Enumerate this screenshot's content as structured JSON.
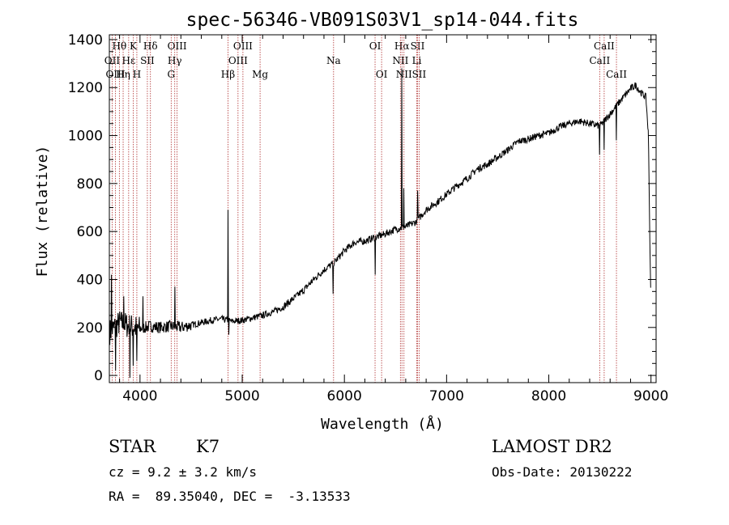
{
  "chart_data": {
    "type": "line",
    "title": "spec-56346-VB091S03V1_sp14-044.fits",
    "xlabel": "Wavelength (Å)",
    "ylabel": "Flux (relative)",
    "xlim": [
      3700,
      9050
    ],
    "ylim": [
      -30,
      1420
    ],
    "xticks": [
      "4000",
      "5000",
      "6000",
      "7000",
      "8000",
      "9000"
    ],
    "xtick_values": [
      4000,
      5000,
      6000,
      7000,
      8000,
      9000
    ],
    "yticks": [
      "0",
      "200",
      "400",
      "600",
      "800",
      "1000",
      "1200",
      "1400"
    ],
    "ytick_values": [
      0,
      200,
      400,
      600,
      800,
      1000,
      1200,
      1400
    ],
    "line_color": "#000000",
    "marker_color": "#b03030",
    "continuum": [
      [
        3700,
        180
      ],
      [
        3800,
        220
      ],
      [
        3900,
        205
      ],
      [
        4000,
        195
      ],
      [
        4100,
        205
      ],
      [
        4200,
        200
      ],
      [
        4300,
        205
      ],
      [
        4400,
        200
      ],
      [
        4500,
        210
      ],
      [
        4600,
        220
      ],
      [
        4700,
        230
      ],
      [
        4800,
        235
      ],
      [
        4900,
        225
      ],
      [
        5000,
        230
      ],
      [
        5100,
        240
      ],
      [
        5200,
        250
      ],
      [
        5300,
        265
      ],
      [
        5400,
        285
      ],
      [
        5500,
        320
      ],
      [
        5600,
        355
      ],
      [
        5700,
        400
      ],
      [
        5800,
        440
      ],
      [
        5900,
        470
      ],
      [
        6000,
        520
      ],
      [
        6100,
        555
      ],
      [
        6200,
        560
      ],
      [
        6300,
        575
      ],
      [
        6400,
        590
      ],
      [
        6500,
        610
      ],
      [
        6600,
        620
      ],
      [
        6700,
        640
      ],
      [
        6800,
        690
      ],
      [
        6900,
        720
      ],
      [
        7000,
        755
      ],
      [
        7100,
        790
      ],
      [
        7200,
        820
      ],
      [
        7300,
        860
      ],
      [
        7400,
        880
      ],
      [
        7500,
        910
      ],
      [
        7600,
        940
      ],
      [
        7700,
        975
      ],
      [
        7800,
        985
      ],
      [
        7900,
        1000
      ],
      [
        8000,
        1010
      ],
      [
        8100,
        1035
      ],
      [
        8200,
        1050
      ],
      [
        8300,
        1060
      ],
      [
        8400,
        1050
      ],
      [
        8500,
        1040
      ],
      [
        8600,
        1090
      ],
      [
        8700,
        1145
      ],
      [
        8800,
        1195
      ],
      [
        8850,
        1210
      ],
      [
        8900,
        1180
      ],
      [
        8950,
        1160
      ],
      [
        8975,
        1000
      ],
      [
        8990,
        520
      ],
      [
        9000,
        300
      ]
    ],
    "features": [
      {
        "x": 3720,
        "y": 420
      },
      {
        "x": 3760,
        "y": 20
      },
      {
        "x": 3840,
        "y": 330
      },
      {
        "x": 3900,
        "y": -10
      },
      {
        "x": 3933,
        "y": 40
      },
      {
        "x": 3968,
        "y": 60
      },
      {
        "x": 4030,
        "y": 330
      },
      {
        "x": 4340,
        "y": 370
      },
      {
        "x": 4861,
        "y": 690
      },
      {
        "x": 4870,
        "y": 170
      },
      {
        "x": 5890,
        "y": 340
      },
      {
        "x": 6300,
        "y": 420
      },
      {
        "x": 6563,
        "y": 1280
      },
      {
        "x": 6583,
        "y": 780
      },
      {
        "x": 6716,
        "y": 770
      },
      {
        "x": 8498,
        "y": 920
      },
      {
        "x": 8542,
        "y": 940
      },
      {
        "x": 8662,
        "y": 980
      }
    ],
    "line_markers": [
      {
        "name": "Hθ",
        "x": 3798,
        "row": 0
      },
      {
        "name": "OII",
        "x": 3727,
        "row": 1
      },
      {
        "name": "OIII",
        "x": 3760,
        "row": 2
      },
      {
        "name": "K",
        "x": 3934,
        "row": 0
      },
      {
        "name": "Hε",
        "x": 3889,
        "row": 1
      },
      {
        "name": "Hη",
        "x": 3835,
        "row": 2
      },
      {
        "name": "SII",
        "x": 4072,
        "row": 1
      },
      {
        "name": "H",
        "x": 3969,
        "row": 2
      },
      {
        "name": "Hδ",
        "x": 4102,
        "row": 0
      },
      {
        "name": "OIII",
        "x": 4363,
        "row": 0
      },
      {
        "name": "Hγ",
        "x": 4340,
        "row": 1
      },
      {
        "name": "G",
        "x": 4305,
        "row": 2
      },
      {
        "name": "OIII",
        "x": 5007,
        "row": 0
      },
      {
        "name": "OIII",
        "x": 4959,
        "row": 1
      },
      {
        "name": "Hβ",
        "x": 4861,
        "row": 2
      },
      {
        "name": "Mg",
        "x": 5175,
        "row": 2
      },
      {
        "name": "Na",
        "x": 5894,
        "row": 1
      },
      {
        "name": "OI",
        "x": 6300,
        "row": 0
      },
      {
        "name": "OI",
        "x": 6364,
        "row": 2
      },
      {
        "name": "Hα",
        "x": 6563,
        "row": 0
      },
      {
        "name": "SII",
        "x": 6716,
        "row": 0
      },
      {
        "name": "NII",
        "x": 6548,
        "row": 1
      },
      {
        "name": "Li",
        "x": 6708,
        "row": 1
      },
      {
        "name": "NII",
        "x": 6583,
        "row": 2
      },
      {
        "name": "SII",
        "x": 6731,
        "row": 2
      },
      {
        "name": "CaII",
        "x": 8542,
        "row": 0
      },
      {
        "name": "CaII",
        "x": 8498,
        "row": 1
      },
      {
        "name": "CaII",
        "x": 8662,
        "row": 2
      }
    ],
    "grid": false
  },
  "info": {
    "class_label": "STAR",
    "subclass": "K7",
    "survey": "LAMOST DR2",
    "cz": "cz = 9.2 ± 3.2 km/s",
    "obs_date": "Obs-Date: 20130222",
    "radec": "RA =  89.35040, DEC =  -3.13533"
  }
}
